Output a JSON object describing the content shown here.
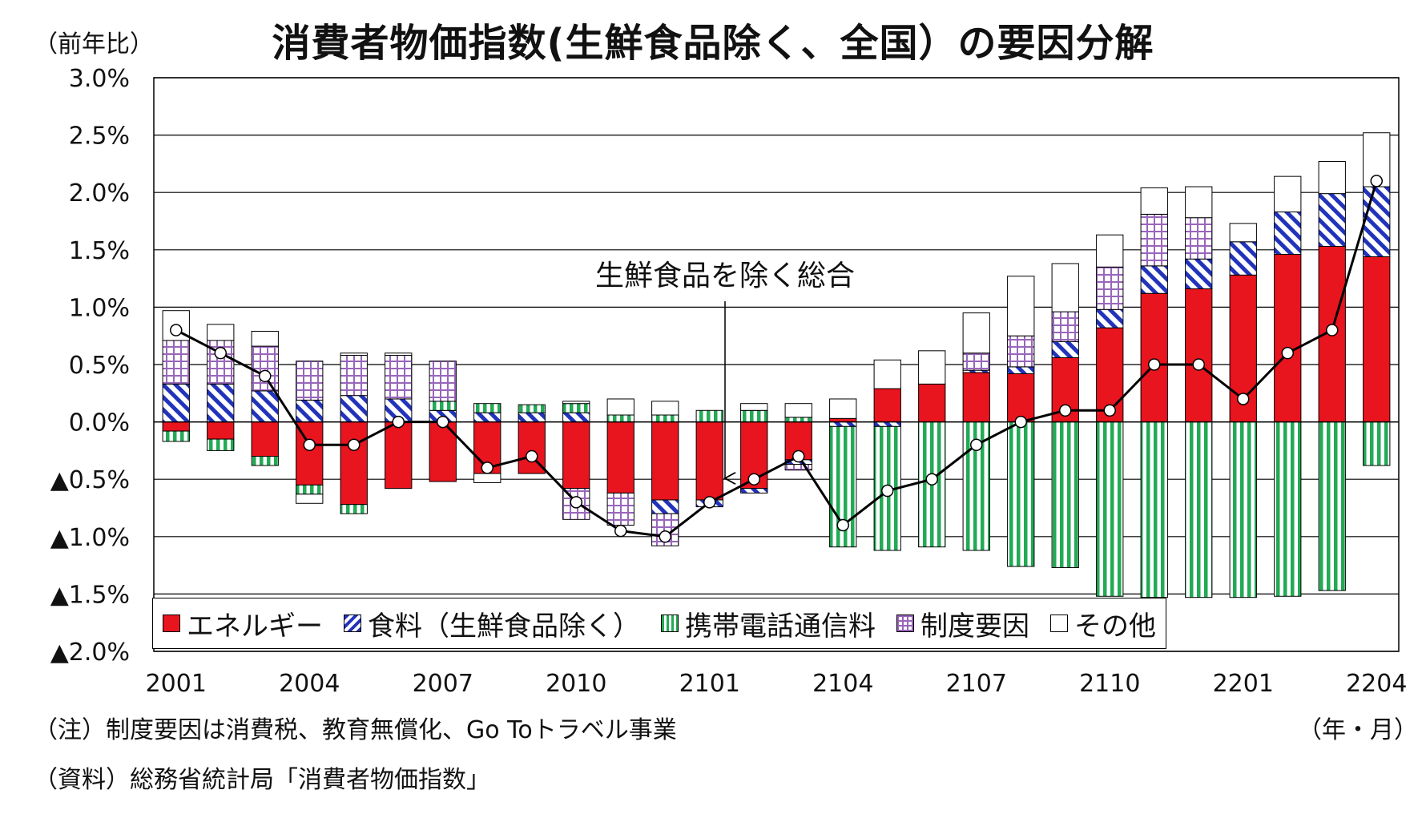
{
  "chart_data": {
    "type": "bar",
    "title": "消費者物価指数(生鮮食品除く、全国）の要因分解",
    "y_unit_label": "（前年比）",
    "x_unit_label": "（年・月）",
    "ylim": [
      -2.0,
      3.0
    ],
    "y_ticks": [
      3.0,
      2.5,
      2.0,
      1.5,
      1.0,
      0.5,
      0.0,
      -0.5,
      -1.0,
      -1.5,
      -2.0
    ],
    "y_tick_labels": [
      "3.0%",
      "2.5%",
      "2.0%",
      "1.5%",
      "1.0%",
      "0.5%",
      "0.0%",
      "▲0.5%",
      "▲1.0%",
      "▲1.5%",
      "▲2.0%"
    ],
    "categories": [
      "2001",
      "2002",
      "2003",
      "2004",
      "2005",
      "2006",
      "2007",
      "2008",
      "2009",
      "2010",
      "2011",
      "2012",
      "2101",
      "2102",
      "2103",
      "2104",
      "2105",
      "2106",
      "2107",
      "2108",
      "2109",
      "2110",
      "2111",
      "2112",
      "2201",
      "2202",
      "2203",
      "2204"
    ],
    "x_tick_labels": [
      {
        "index": 0,
        "label": "2001"
      },
      {
        "index": 3,
        "label": "2004"
      },
      {
        "index": 6,
        "label": "2007"
      },
      {
        "index": 9,
        "label": "2010"
      },
      {
        "index": 12,
        "label": "2101"
      },
      {
        "index": 15,
        "label": "2104"
      },
      {
        "index": 18,
        "label": "2107"
      },
      {
        "index": 21,
        "label": "2110"
      },
      {
        "index": 24,
        "label": "2201"
      },
      {
        "index": 27,
        "label": "2204"
      }
    ],
    "series": [
      {
        "name": "エネルギー",
        "kind": "bar",
        "color": "#e8141e",
        "values": [
          -0.08,
          -0.15,
          -0.3,
          -0.55,
          -0.72,
          -0.58,
          -0.52,
          -0.45,
          -0.45,
          -0.58,
          -0.62,
          -0.68,
          -0.68,
          -0.58,
          -0.33,
          0.03,
          0.29,
          0.33,
          0.43,
          0.42,
          0.56,
          0.82,
          1.12,
          1.16,
          1.28,
          1.46,
          1.53,
          1.44
        ]
      },
      {
        "name": "食料（生鮮食品除く）",
        "kind": "bar",
        "color": "#2233bb",
        "values": [
          0.33,
          0.33,
          0.27,
          0.19,
          0.23,
          0.2,
          0.1,
          0.08,
          0.08,
          0.08,
          0.0,
          -0.12,
          -0.06,
          -0.04,
          -0.04,
          -0.04,
          -0.04,
          0.0,
          0.02,
          0.06,
          0.14,
          0.16,
          0.24,
          0.26,
          0.29,
          0.37,
          0.46,
          0.61
        ]
      },
      {
        "name": "携帯電話通信料",
        "kind": "bar",
        "color": "#22aa55",
        "values": [
          -0.09,
          -0.1,
          -0.08,
          -0.08,
          -0.08,
          0.0,
          0.08,
          0.08,
          0.07,
          0.08,
          0.06,
          0.06,
          0.1,
          0.1,
          0.04,
          -1.05,
          -1.08,
          -1.09,
          -1.12,
          -1.26,
          -1.27,
          -1.52,
          -1.53,
          -1.53,
          -1.53,
          -1.52,
          -1.47,
          -0.38
        ]
      },
      {
        "name": "制度要因",
        "kind": "bar",
        "color": "#9966bb",
        "values": [
          0.38,
          0.38,
          0.39,
          0.34,
          0.35,
          0.38,
          0.35,
          0.0,
          0.0,
          -0.27,
          -0.28,
          -0.28,
          0.0,
          0.0,
          -0.05,
          0.0,
          0.0,
          0.0,
          0.15,
          0.27,
          0.26,
          0.37,
          0.45,
          0.36,
          0.0,
          0.0,
          0.0,
          0.0
        ]
      },
      {
        "name": "その他",
        "kind": "bar",
        "color": "#ffffff",
        "values": [
          0.26,
          0.14,
          0.13,
          -0.08,
          0.02,
          0.02,
          0.0,
          -0.08,
          0.0,
          0.02,
          0.14,
          0.12,
          0.0,
          0.06,
          0.12,
          0.17,
          0.25,
          0.29,
          0.35,
          0.52,
          0.42,
          0.28,
          0.23,
          0.27,
          0.16,
          0.31,
          0.28,
          0.47
        ]
      },
      {
        "name": "生鮮食品を除く総合",
        "kind": "line",
        "color": "#000000",
        "values": [
          0.8,
          0.6,
          0.4,
          -0.2,
          -0.2,
          0.0,
          0.0,
          -0.4,
          -0.3,
          -0.7,
          -0.95,
          -1.0,
          -0.7,
          -0.5,
          -0.3,
          -0.9,
          -0.6,
          -0.5,
          -0.2,
          0.0,
          0.1,
          0.1,
          0.5,
          0.5,
          0.2,
          0.6,
          0.8,
          2.1
        ]
      }
    ],
    "annotation": "生鮮食品を除く総合",
    "grid": true,
    "legend_position": "bottom-inside"
  },
  "footnote": "（注）制度要因は消費税、教育無償化、Go Toトラベル事業",
  "source": "（資料）総務省統計局「消費者物価指数」"
}
